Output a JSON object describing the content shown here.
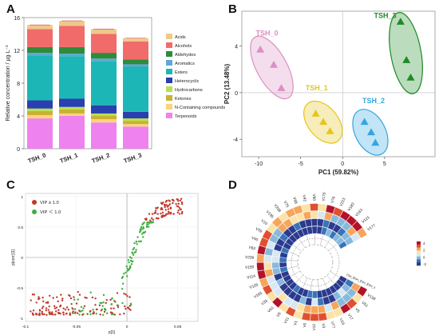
{
  "panels": {
    "a": {
      "letter": "A"
    },
    "b": {
      "letter": "B"
    },
    "c": {
      "letter": "C"
    },
    "d": {
      "letter": "D"
    }
  },
  "heatmap_legend_ticks": [
    "4",
    "2",
    "0",
    "-2"
  ],
  "chart_data": [
    {
      "type": "bar",
      "panel": "A",
      "stacked": true,
      "ylabel": "Relative concentration / μg·L⁻¹",
      "ylim": [
        0,
        16
      ],
      "yticks": [
        "0",
        "4",
        "8",
        "12",
        "16"
      ],
      "categories": [
        "TSH_0",
        "TSH_1",
        "TSH_2",
        "TSH_3"
      ],
      "series": [
        {
          "name": "Terpenoids",
          "color": "#ee82ee",
          "values": [
            3.7,
            4.0,
            3.2,
            2.7
          ]
        },
        {
          "name": "N-Containing compounds",
          "color": "#ffd27f",
          "values": [
            0.4,
            0.3,
            0.4,
            0.3
          ]
        },
        {
          "name": "Ketones",
          "color": "#c8b232",
          "values": [
            0.5,
            0.5,
            0.4,
            0.4
          ]
        },
        {
          "name": "Hydrocarbons",
          "color": "#b8e04a",
          "values": [
            0.3,
            0.3,
            0.3,
            0.3
          ]
        },
        {
          "name": "Heterocyclic",
          "color": "#2a3fb0",
          "values": [
            1.0,
            1.0,
            1.0,
            0.8
          ]
        },
        {
          "name": "Esters",
          "color": "#1cb6b6",
          "values": [
            5.5,
            5.2,
            5.4,
            5.5
          ]
        },
        {
          "name": "Aromatics",
          "color": "#5fa8d3",
          "values": [
            0.3,
            0.3,
            0.3,
            0.3
          ]
        },
        {
          "name": "Aldehydes",
          "color": "#2e8b3a",
          "values": [
            0.7,
            0.8,
            0.7,
            0.6
          ]
        },
        {
          "name": "Alcohols",
          "color": "#f26b6b",
          "values": [
            2.2,
            2.6,
            2.3,
            2.2
          ]
        },
        {
          "name": "Acids",
          "color": "#f0c98a",
          "values": [
            0.5,
            0.6,
            0.6,
            0.4
          ]
        }
      ],
      "legend": [
        "Acids",
        "Alcohols",
        "Aldehydes",
        "Aromatics",
        "Esters",
        "Heterocyclic",
        "Hydrocarbons",
        "Ketones",
        "N-Containing compounds",
        "Terpenoids"
      ]
    },
    {
      "type": "scatter",
      "panel": "B",
      "xlabel": "PC1 (59.82%)",
      "ylabel": "PC2 (13.48%)",
      "xlim": [
        -12,
        11
      ],
      "ylim": [
        -5.5,
        7
      ],
      "xticks": [
        "-10",
        "-5",
        "0",
        "5"
      ],
      "yticks": [
        "-4",
        "0",
        "4"
      ],
      "groups": [
        {
          "name": "TSH_0",
          "color": "#dc8fc4",
          "points": [
            [
              -9.8,
              3.7
            ],
            [
              -8.2,
              2.4
            ],
            [
              -7.3,
              0.4
            ]
          ]
        },
        {
          "name": "TSH_1",
          "color": "#e6c51b",
          "points": [
            [
              -3.2,
              -1.8
            ],
            [
              -2.3,
              -2.5
            ],
            [
              -1.5,
              -3.3
            ]
          ]
        },
        {
          "name": "TSH_2",
          "color": "#33a5e0",
          "points": [
            [
              2.6,
              -2.5
            ],
            [
              3.4,
              -3.4
            ],
            [
              3.9,
              -4.3
            ]
          ]
        },
        {
          "name": "TSH_3",
          "color": "#1e8a25",
          "points": [
            [
              6.9,
              6.1
            ],
            [
              7.6,
              2.8
            ],
            [
              8.1,
              1.3
            ]
          ]
        }
      ]
    },
    {
      "type": "scatter",
      "panel": "C",
      "xlabel": "p[1]",
      "ylabel": "p(corr)[1]",
      "xlim": [
        -0.1,
        0.07
      ],
      "ylim": [
        -1.05,
        1.05
      ],
      "xticks": [
        "-0.1",
        "-0.05",
        "0",
        "0.05"
      ],
      "yticks": [
        "-1",
        "-0.5",
        "0",
        "0.5",
        "1"
      ],
      "legend": [
        {
          "label": "VIP ≥ 1.0",
          "color": "#c0392b"
        },
        {
          "label": "VIP ＜ 1.0",
          "color": "#3fae3f"
        }
      ]
    },
    {
      "type": "heatmap",
      "panel": "D",
      "layout": "circular",
      "legend_ticks": [
        "4",
        "2",
        "0",
        "-2"
      ],
      "samples": [
        "TSH_0",
        "TSH_1",
        "TSH_2",
        "TSH_3"
      ],
      "features_visible": [
        "V138",
        "V51",
        "V5",
        "V17",
        "V19",
        "V77",
        "V3",
        "V12",
        "V6",
        "V1",
        "V11",
        "V8",
        "V61",
        "V33",
        "V165",
        "V105",
        "V114",
        "V150",
        "V239",
        "V63",
        "V40",
        "V59",
        "V10",
        "V195",
        "V208",
        "V75",
        "V68",
        "V42",
        "V90",
        "V170",
        "V76",
        "V213",
        "V183",
        "V163",
        "V121",
        "V177"
      ]
    }
  ]
}
